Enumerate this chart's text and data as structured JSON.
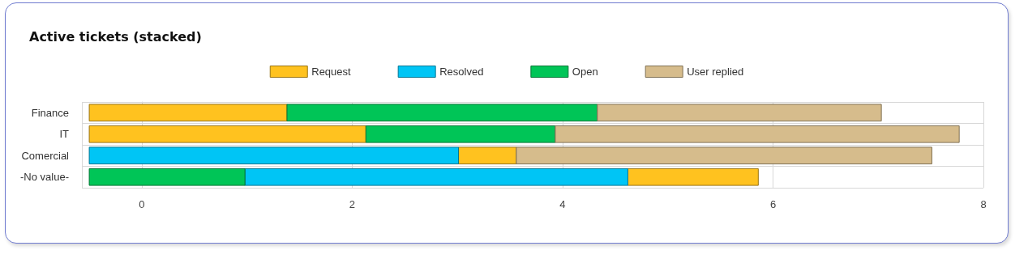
{
  "chart_data": {
    "type": "bar",
    "orientation": "horizontal",
    "title": "Active tickets (stacked)",
    "categories": [
      "Finance",
      "IT",
      "Comercial",
      "-No value-"
    ],
    "series": [
      {
        "name": "Request",
        "color": "#ffc21f",
        "base": [
          -0.5,
          -0.5,
          3.01,
          4.62
        ],
        "values": [
          1.88,
          2.63,
          0.55,
          1.24
        ]
      },
      {
        "name": "Resolved",
        "color": "#00c5f5",
        "base": [
          null,
          null,
          -0.5,
          0.98
        ],
        "values": [
          null,
          null,
          3.51,
          3.64
        ]
      },
      {
        "name": "Open",
        "color": "#00c557",
        "base": [
          1.38,
          2.13,
          null,
          -0.5
        ],
        "values": [
          2.95,
          1.8,
          null,
          1.48
        ]
      },
      {
        "name": "User replied",
        "color": "#d6bc8c",
        "base": [
          4.33,
          3.93,
          3.56,
          null
        ],
        "values": [
          2.7,
          3.84,
          3.95,
          null
        ]
      }
    ],
    "xlim": [
      -0.57,
      8
    ],
    "xticks": [
      0,
      2,
      4,
      6,
      8
    ],
    "grid": true,
    "legend": "top"
  }
}
